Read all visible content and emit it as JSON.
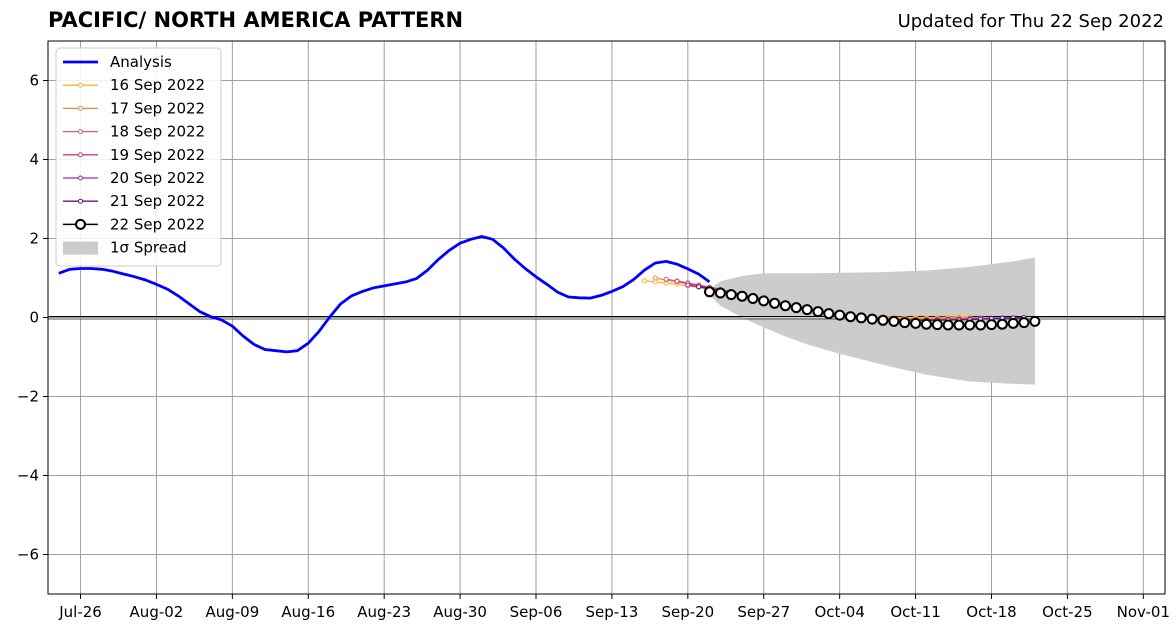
{
  "chart_data": {
    "type": "line",
    "title": "PACIFIC/ NORTH AMERICA PATTERN",
    "subtitle": "Updated for Thu 22 Sep 2022",
    "xlabel": "",
    "ylabel": "",
    "grid": true,
    "legend_position": "top-left",
    "ylim": [
      -7,
      7
    ],
    "xlim": [
      "2022-07-23",
      "2022-11-03"
    ],
    "yticks": [
      "6",
      "4",
      "2",
      "0",
      "−2",
      "−4",
      "−6"
    ],
    "xtick_dates": [
      "2022-07-26",
      "2022-08-02",
      "2022-08-09",
      "2022-08-16",
      "2022-08-23",
      "2022-08-30",
      "2022-09-06",
      "2022-09-13",
      "2022-09-20",
      "2022-09-27",
      "2022-10-04",
      "2022-10-11",
      "2022-10-18",
      "2022-10-25",
      "2022-11-01"
    ],
    "xtick_labels": [
      "Jul-26",
      "Aug-02",
      "Aug-09",
      "Aug-16",
      "Aug-23",
      "Aug-30",
      "Sep-06",
      "Sep-13",
      "Sep-20",
      "Sep-27",
      "Oct-04",
      "Oct-11",
      "Oct-18",
      "Oct-25",
      "Nov-01"
    ],
    "analysis": {
      "name": "Analysis",
      "color": "#0000ff",
      "x": [
        "2022-07-24",
        "2022-07-25",
        "2022-07-26",
        "2022-07-27",
        "2022-07-28",
        "2022-07-29",
        "2022-07-30",
        "2022-07-31",
        "2022-08-01",
        "2022-08-02",
        "2022-08-03",
        "2022-08-04",
        "2022-08-05",
        "2022-08-06",
        "2022-08-07",
        "2022-08-08",
        "2022-08-09",
        "2022-08-10",
        "2022-08-11",
        "2022-08-12",
        "2022-08-13",
        "2022-08-14",
        "2022-08-15",
        "2022-08-16",
        "2022-08-17",
        "2022-08-18",
        "2022-08-19",
        "2022-08-20",
        "2022-08-21",
        "2022-08-22",
        "2022-08-23",
        "2022-08-24",
        "2022-08-25",
        "2022-08-26",
        "2022-08-27",
        "2022-08-28",
        "2022-08-29",
        "2022-08-30",
        "2022-08-31",
        "2022-09-01",
        "2022-09-02",
        "2022-09-03",
        "2022-09-04",
        "2022-09-05",
        "2022-09-06",
        "2022-09-07",
        "2022-09-08",
        "2022-09-09",
        "2022-09-10",
        "2022-09-11",
        "2022-09-12",
        "2022-09-13",
        "2022-09-14",
        "2022-09-15",
        "2022-09-16",
        "2022-09-17",
        "2022-09-18",
        "2022-09-19",
        "2022-09-20",
        "2022-09-21",
        "2022-09-22"
      ],
      "y": [
        1.12,
        1.22,
        1.24,
        1.24,
        1.22,
        1.17,
        1.1,
        1.03,
        0.95,
        0.84,
        0.72,
        0.55,
        0.35,
        0.15,
        0.02,
        -0.06,
        -0.22,
        -0.47,
        -0.68,
        -0.81,
        -0.84,
        -0.87,
        -0.84,
        -0.65,
        -0.35,
        0.02,
        0.35,
        0.55,
        0.66,
        0.75,
        0.8,
        0.85,
        0.9,
        0.99,
        1.2,
        1.47,
        1.7,
        1.88,
        1.98,
        2.05,
        1.98,
        1.76,
        1.48,
        1.24,
        1.03,
        0.84,
        0.64,
        0.52,
        0.5,
        0.49,
        0.56,
        0.66,
        0.78,
        0.96,
        1.2,
        1.38,
        1.42,
        1.35,
        1.23,
        1.1,
        0.9
      ]
    },
    "forecasts": [
      {
        "name": "16 Sep 2022",
        "color": "#f7b731",
        "start": "2022-09-16",
        "values": [
          0.93,
          0.9,
          0.87,
          0.84,
          0.8,
          0.76,
          0.72,
          0.68,
          0.63,
          0.58,
          0.53,
          0.48,
          0.43,
          0.37,
          0.32,
          0.26,
          0.21,
          0.16,
          0.12,
          0.09,
          0.06,
          0.03,
          0.02,
          0.01,
          0.0,
          0.0,
          0.0,
          0.0,
          0.01,
          0.02,
          0.02
        ]
      },
      {
        "name": "17 Sep 2022",
        "color": "#f08a3c",
        "start": "2022-09-17",
        "values": [
          1.0,
          0.95,
          0.9,
          0.85,
          0.8,
          0.74,
          0.68,
          0.62,
          0.56,
          0.5,
          0.45,
          0.39,
          0.34,
          0.28,
          0.23,
          0.18,
          0.13,
          0.09,
          0.06,
          0.03,
          0.01,
          -0.01,
          -0.02,
          -0.03,
          -0.03,
          -0.03,
          -0.02,
          -0.02,
          -0.01,
          -0.01,
          -0.01
        ]
      },
      {
        "name": "18 Sep 2022",
        "color": "#e05a6e",
        "start": "2022-09-18",
        "values": [
          0.97,
          0.92,
          0.87,
          0.82,
          0.76,
          0.7,
          0.64,
          0.58,
          0.51,
          0.45,
          0.39,
          0.33,
          0.28,
          0.22,
          0.17,
          0.12,
          0.08,
          0.04,
          0.01,
          -0.02,
          -0.04,
          -0.05,
          -0.06,
          -0.06,
          -0.06,
          -0.05,
          -0.05,
          -0.04,
          -0.03,
          -0.03,
          -0.02
        ]
      },
      {
        "name": "19 Sep 2022",
        "color": "#c2407f",
        "start": "2022-09-19",
        "values": [
          0.92,
          0.87,
          0.82,
          0.77,
          0.71,
          0.65,
          0.58,
          0.52,
          0.46,
          0.4,
          0.34,
          0.28,
          0.23,
          0.18,
          0.13,
          0.09,
          0.05,
          0.02,
          -0.01,
          -0.03,
          -0.05,
          -0.06,
          -0.06,
          -0.06,
          -0.06,
          -0.05,
          -0.04,
          -0.04,
          -0.03,
          -0.02,
          -0.02
        ]
      },
      {
        "name": "20 Sep 2022",
        "color": "#9a2b9e",
        "start": "2022-09-20",
        "values": [
          0.82,
          0.78,
          0.73,
          0.68,
          0.62,
          0.56,
          0.5,
          0.44,
          0.38,
          0.32,
          0.27,
          0.22,
          0.17,
          0.12,
          0.08,
          0.05,
          0.02,
          -0.01,
          -0.03,
          -0.05,
          -0.06,
          -0.06,
          -0.06,
          -0.06,
          -0.05,
          -0.05,
          -0.04,
          -0.03,
          -0.02,
          -0.01,
          -0.01
        ]
      },
      {
        "name": "21 Sep 2022",
        "color": "#5a1a8c",
        "start": "2022-09-21",
        "values": [
          0.78,
          0.73,
          0.68,
          0.63,
          0.57,
          0.51,
          0.45,
          0.39,
          0.33,
          0.28,
          0.23,
          0.18,
          0.13,
          0.09,
          0.05,
          0.02,
          -0.01,
          -0.03,
          -0.05,
          -0.06,
          -0.07,
          -0.07,
          -0.07,
          -0.06,
          -0.06,
          -0.05,
          -0.04,
          -0.03,
          -0.02,
          -0.01,
          0.0
        ]
      }
    ],
    "current_forecast": {
      "name": "22 Sep 2022",
      "color": "#000000",
      "start": "2022-09-22",
      "values": [
        0.65,
        0.62,
        0.58,
        0.54,
        0.48,
        0.42,
        0.36,
        0.3,
        0.25,
        0.2,
        0.15,
        0.1,
        0.06,
        0.02,
        -0.01,
        -0.04,
        -0.07,
        -0.1,
        -0.13,
        -0.15,
        -0.17,
        -0.18,
        -0.19,
        -0.19,
        -0.19,
        -0.19,
        -0.18,
        -0.17,
        -0.15,
        -0.13,
        -0.1
      ]
    },
    "spread": {
      "name": "1σ Spread",
      "color": "#cccccc",
      "x": [
        "2022-09-22",
        "2022-09-23",
        "2022-09-25",
        "2022-09-27",
        "2022-09-29",
        "2022-10-01",
        "2022-10-04",
        "2022-10-08",
        "2022-10-12",
        "2022-10-16",
        "2022-10-20",
        "2022-10-22"
      ],
      "upper": [
        0.72,
        0.92,
        1.05,
        1.12,
        1.12,
        1.12,
        1.13,
        1.15,
        1.19,
        1.28,
        1.42,
        1.52
      ],
      "lower": [
        0.58,
        0.3,
        0.0,
        -0.25,
        -0.48,
        -0.68,
        -0.92,
        -1.2,
        -1.45,
        -1.62,
        -1.68,
        -1.7
      ]
    }
  }
}
